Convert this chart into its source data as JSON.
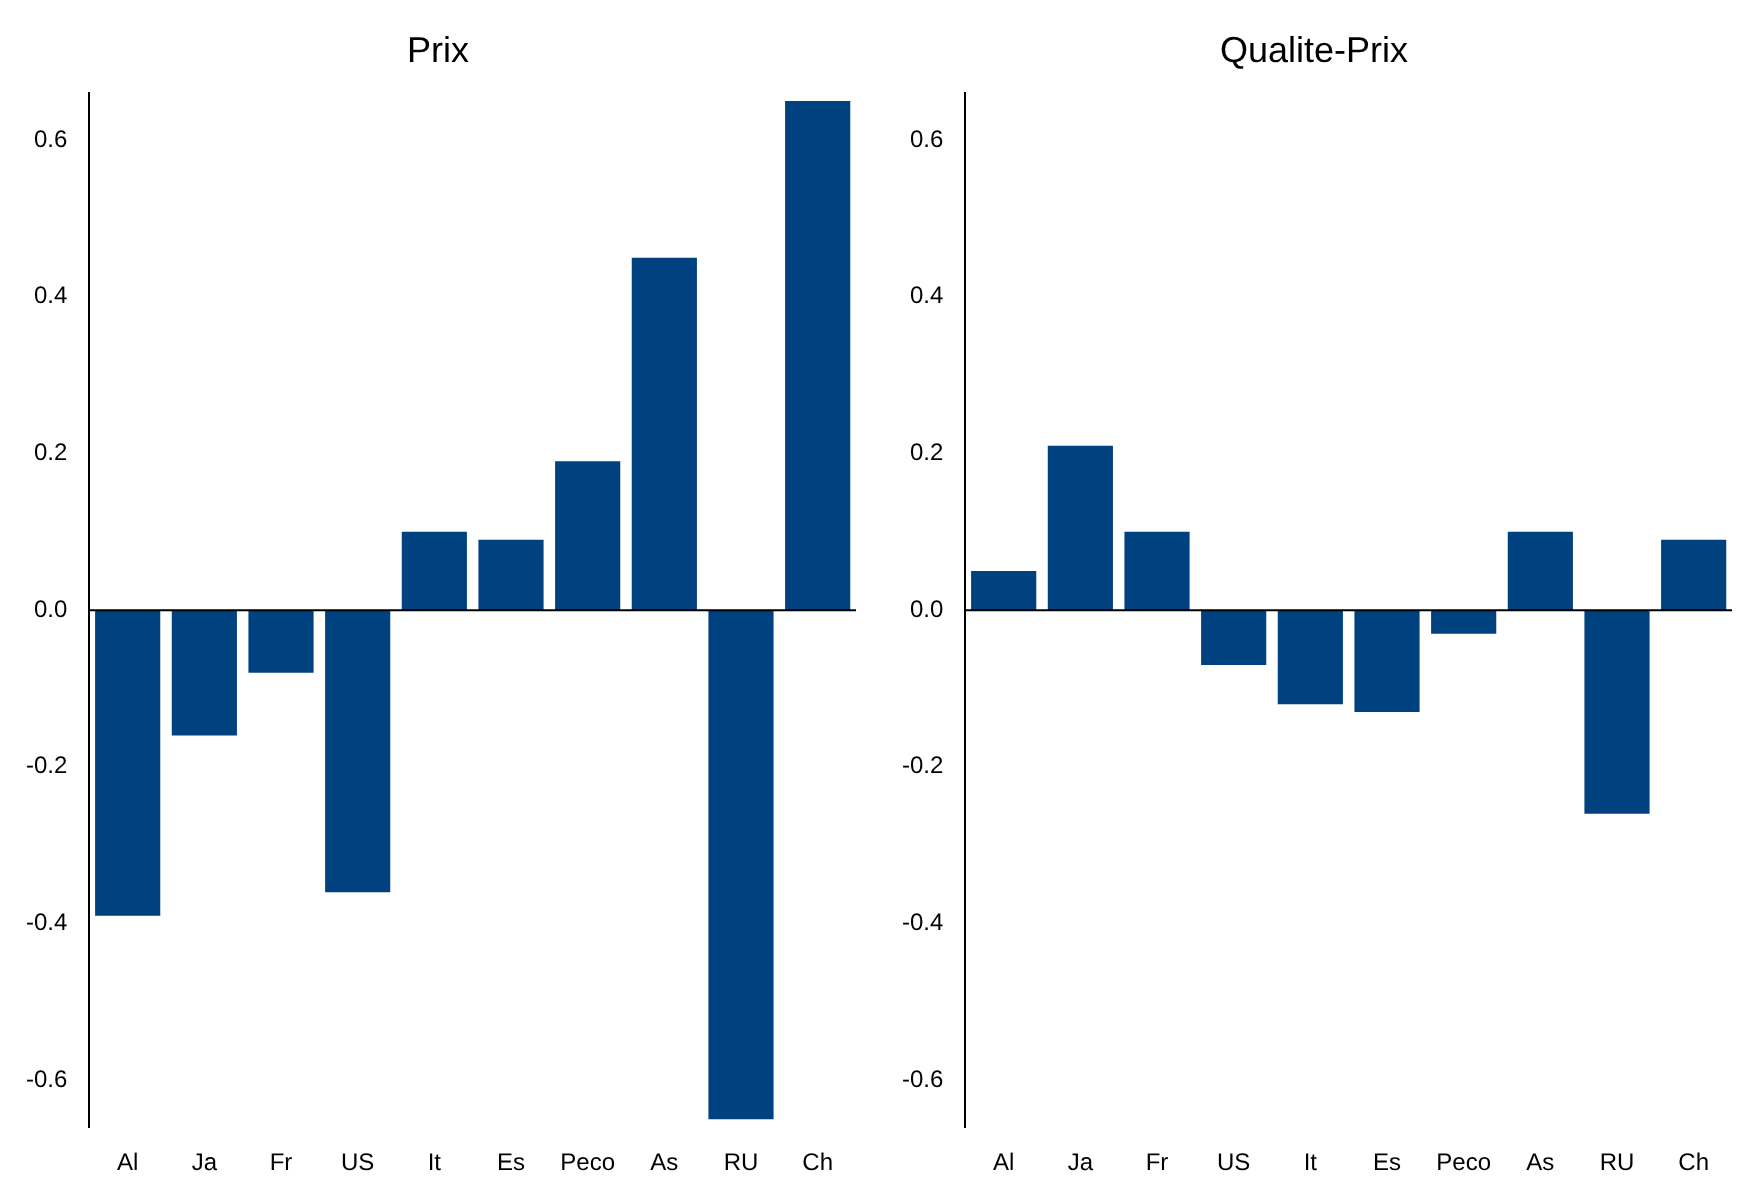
{
  "chart_data": [
    {
      "type": "bar",
      "title": "Prix",
      "categories": [
        "Al",
        "Ja",
        "Fr",
        "US",
        "It",
        "Es",
        "Peco",
        "As",
        "RU",
        "Ch"
      ],
      "values": [
        -0.39,
        -0.16,
        -0.08,
        -0.36,
        0.1,
        0.09,
        0.19,
        0.45,
        -0.65,
        0.65
      ],
      "color": "#00417f",
      "ylim": [
        -0.66,
        0.66
      ],
      "yticks": [
        -0.6,
        -0.4,
        -0.2,
        {
          "value": 0,
          "label": "0.0"
        },
        0.2,
        0.4,
        0.6
      ],
      "grid": false,
      "legend": false,
      "ref_lines": [
        {
          "axis": "y",
          "value": 0,
          "color": "#000000"
        }
      ]
    },
    {
      "type": "bar",
      "title": "Qualite-Prix",
      "categories": [
        "Al",
        "Ja",
        "Fr",
        "US",
        "It",
        "Es",
        "Peco",
        "As",
        "RU",
        "Ch"
      ],
      "values": [
        0.05,
        0.21,
        0.1,
        -0.07,
        -0.12,
        -0.13,
        -0.03,
        0.1,
        -0.26,
        0.09
      ],
      "color": "#00417f",
      "ylim": [
        -0.66,
        0.66
      ],
      "yticks": [
        -0.6,
        -0.4,
        -0.2,
        {
          "value": 0,
          "label": "0.0"
        },
        0.2,
        0.4,
        0.6
      ],
      "grid": false,
      "legend": false,
      "ref_lines": [
        {
          "axis": "y",
          "value": 0,
          "color": "#000000"
        }
      ]
    }
  ]
}
